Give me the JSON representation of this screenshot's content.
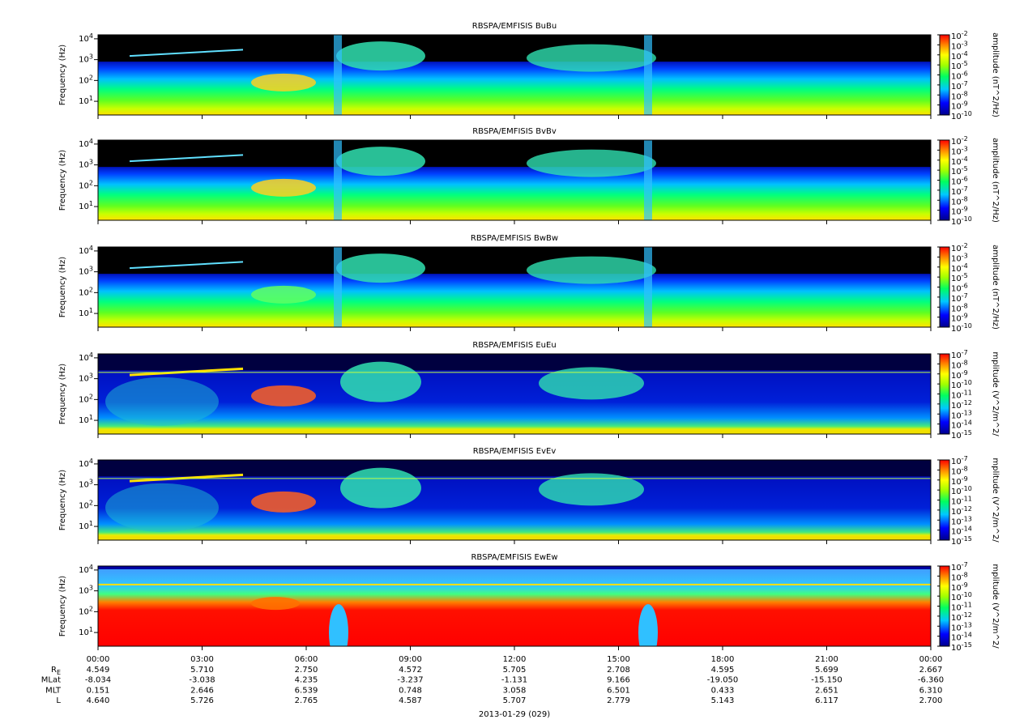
{
  "chart_data": [
    {
      "type": "spectrogram",
      "title": "RBSPA/EMFISIS  BuBu",
      "ylabel": "Frequency (Hz)",
      "log_y": true,
      "ylim": [
        2.2,
        15500
      ],
      "yticks": [
        {
          "value": 10,
          "label": "10^1"
        },
        {
          "value": 100,
          "label": "10^2"
        },
        {
          "value": 1000,
          "label": "10^3"
        },
        {
          "value": 10000,
          "label": "10^4"
        }
      ],
      "zlabel": "amplitude (nT^2/Hz)",
      "zlim": [
        1e-10,
        0.01
      ],
      "zticks": [
        {
          "value": 1e-10,
          "label": "10^-10"
        },
        {
          "value": 1e-09,
          "label": "10^-9"
        },
        {
          "value": 1e-08,
          "label": "10^-8"
        },
        {
          "value": 1e-07,
          "label": "10^-7"
        },
        {
          "value": 1e-06,
          "label": "10^-6"
        },
        {
          "value": 1e-05,
          "label": "10^-5"
        },
        {
          "value": 0.0001,
          "label": "10^-4"
        },
        {
          "value": 0.001,
          "label": "10^-3"
        },
        {
          "value": 0.01,
          "label": "10^-2"
        }
      ]
    },
    {
      "type": "spectrogram",
      "title": "RBSPA/EMFISIS  BvBv",
      "ylabel": "Frequency (Hz)",
      "log_y": true,
      "ylim": [
        2.2,
        15500
      ],
      "yticks": [
        {
          "value": 10,
          "label": "10^1"
        },
        {
          "value": 100,
          "label": "10^2"
        },
        {
          "value": 1000,
          "label": "10^3"
        },
        {
          "value": 10000,
          "label": "10^4"
        }
      ],
      "zlabel": "amplitude (nT^2/Hz)",
      "zlim": [
        1e-10,
        0.01
      ],
      "zticks": [
        {
          "value": 1e-10,
          "label": "10^-10"
        },
        {
          "value": 1e-09,
          "label": "10^-9"
        },
        {
          "value": 1e-08,
          "label": "10^-8"
        },
        {
          "value": 1e-07,
          "label": "10^-7"
        },
        {
          "value": 1e-06,
          "label": "10^-6"
        },
        {
          "value": 1e-05,
          "label": "10^-5"
        },
        {
          "value": 0.0001,
          "label": "10^-4"
        },
        {
          "value": 0.001,
          "label": "10^-3"
        },
        {
          "value": 0.01,
          "label": "10^-2"
        }
      ]
    },
    {
      "type": "spectrogram",
      "title": "RBSPA/EMFISIS  BwBw",
      "ylabel": "Frequency (Hz)",
      "log_y": true,
      "ylim": [
        2.2,
        15500
      ],
      "yticks": [
        {
          "value": 10,
          "label": "10^1"
        },
        {
          "value": 100,
          "label": "10^2"
        },
        {
          "value": 1000,
          "label": "10^3"
        },
        {
          "value": 10000,
          "label": "10^4"
        }
      ],
      "zlabel": "amplitude (nT^2/Hz)",
      "zlim": [
        1e-10,
        0.01
      ],
      "zticks": [
        {
          "value": 1e-10,
          "label": "10^-10"
        },
        {
          "value": 1e-09,
          "label": "10^-9"
        },
        {
          "value": 1e-08,
          "label": "10^-8"
        },
        {
          "value": 1e-07,
          "label": "10^-7"
        },
        {
          "value": 1e-06,
          "label": "10^-6"
        },
        {
          "value": 1e-05,
          "label": "10^-5"
        },
        {
          "value": 0.0001,
          "label": "10^-4"
        },
        {
          "value": 0.001,
          "label": "10^-3"
        },
        {
          "value": 0.01,
          "label": "10^-2"
        }
      ]
    },
    {
      "type": "spectrogram",
      "title": "RBSPA/EMFISIS  EuEu",
      "ylabel": "Frequency (Hz)",
      "log_y": true,
      "ylim": [
        2.2,
        15500
      ],
      "yticks": [
        {
          "value": 10,
          "label": "10^1"
        },
        {
          "value": 100,
          "label": "10^2"
        },
        {
          "value": 1000,
          "label": "10^3"
        },
        {
          "value": 10000,
          "label": "10^4"
        }
      ],
      "zlabel": "mplitude (V^2/m^2/",
      "zlim": [
        1e-15,
        1e-07
      ],
      "zticks": [
        {
          "value": 1e-15,
          "label": "10^-15"
        },
        {
          "value": 1e-14,
          "label": "10^-14"
        },
        {
          "value": 1e-13,
          "label": "10^-13"
        },
        {
          "value": 1e-12,
          "label": "10^-12"
        },
        {
          "value": 1e-11,
          "label": "10^-11"
        },
        {
          "value": 1e-10,
          "label": "10^-10"
        },
        {
          "value": 1e-09,
          "label": "10^-9"
        },
        {
          "value": 1e-08,
          "label": "10^-8"
        },
        {
          "value": 1e-07,
          "label": "10^-7"
        }
      ]
    },
    {
      "type": "spectrogram",
      "title": "RBSPA/EMFISIS  EvEv",
      "ylabel": "Frequency (Hz)",
      "log_y": true,
      "ylim": [
        2.2,
        15500
      ],
      "yticks": [
        {
          "value": 10,
          "label": "10^1"
        },
        {
          "value": 100,
          "label": "10^2"
        },
        {
          "value": 1000,
          "label": "10^3"
        },
        {
          "value": 10000,
          "label": "10^4"
        }
      ],
      "zlabel": "mplitude (V^2/m^2/",
      "zlim": [
        1e-15,
        1e-07
      ],
      "zticks": [
        {
          "value": 1e-15,
          "label": "10^-15"
        },
        {
          "value": 1e-14,
          "label": "10^-14"
        },
        {
          "value": 1e-13,
          "label": "10^-13"
        },
        {
          "value": 1e-12,
          "label": "10^-12"
        },
        {
          "value": 1e-11,
          "label": "10^-11"
        },
        {
          "value": 1e-10,
          "label": "10^-10"
        },
        {
          "value": 1e-09,
          "label": "10^-9"
        },
        {
          "value": 1e-08,
          "label": "10^-8"
        },
        {
          "value": 1e-07,
          "label": "10^-7"
        }
      ]
    },
    {
      "type": "spectrogram",
      "title": "RBSPA/EMFISIS  EwEw",
      "ylabel": "Frequency (Hz)",
      "log_y": true,
      "ylim": [
        2.2,
        15500
      ],
      "yticks": [
        {
          "value": 10,
          "label": "10^1"
        },
        {
          "value": 100,
          "label": "10^2"
        },
        {
          "value": 1000,
          "label": "10^3"
        },
        {
          "value": 10000,
          "label": "10^4"
        }
      ],
      "zlabel": "mplitude (V^2/m^2/",
      "zlim": [
        1e-15,
        1e-07
      ],
      "zticks": [
        {
          "value": 1e-15,
          "label": "10^-15"
        },
        {
          "value": 1e-14,
          "label": "10^-14"
        },
        {
          "value": 1e-13,
          "label": "10^-13"
        },
        {
          "value": 1e-12,
          "label": "10^-12"
        },
        {
          "value": 1e-11,
          "label": "10^-11"
        },
        {
          "value": 1e-10,
          "label": "10^-10"
        },
        {
          "value": 1e-09,
          "label": "10^-9"
        },
        {
          "value": 1e-08,
          "label": "10^-8"
        },
        {
          "value": 1e-07,
          "label": "10^-7"
        }
      ]
    }
  ],
  "time_axis": {
    "xlim": [
      0,
      24
    ],
    "xticks": [
      {
        "value": 0,
        "label": "00:00"
      },
      {
        "value": 3,
        "label": "03:00"
      },
      {
        "value": 6,
        "label": "06:00"
      },
      {
        "value": 9,
        "label": "09:00"
      },
      {
        "value": 12,
        "label": "12:00"
      },
      {
        "value": 15,
        "label": "15:00"
      },
      {
        "value": 18,
        "label": "18:00"
      },
      {
        "value": 21,
        "label": "21:00"
      },
      {
        "value": 24,
        "label": "00:00"
      }
    ]
  },
  "ephemeris": [
    {
      "name": "R_E",
      "values": [
        "4.549",
        "5.710",
        "2.750",
        "4.572",
        "5.705",
        "2.708",
        "4.595",
        "5.699",
        "2.667"
      ]
    },
    {
      "name": "MLat",
      "values": [
        "-8.034",
        "-3.038",
        "4.235",
        "-3.237",
        "-1.131",
        "9.166",
        "-19.050",
        "-15.150",
        "-6.360"
      ]
    },
    {
      "name": "MLT",
      "values": [
        "0.151",
        "2.646",
        "6.539",
        "0.748",
        "3.058",
        "6.501",
        "0.433",
        "2.651",
        "6.310"
      ]
    },
    {
      "name": "L",
      "values": [
        "4.640",
        "5.726",
        "2.765",
        "4.587",
        "5.707",
        "2.779",
        "5.143",
        "6.117",
        "2.700"
      ]
    }
  ],
  "date": "2013-01-29 (029)"
}
